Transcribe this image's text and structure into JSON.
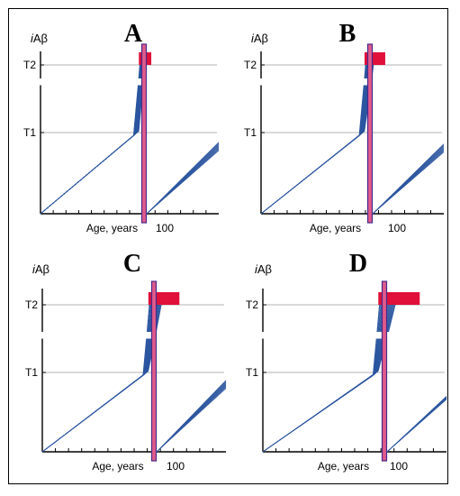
{
  "chart_data": [
    {
      "type": "line",
      "panel_label": "A",
      "ylabel_italic": "i",
      "ylabel_main": "Aβ",
      "xlabel": "Age, years",
      "x_tick_label": "100",
      "y_tick_labels": [
        "T2",
        "T1"
      ],
      "series_color": "#2c56a0",
      "marker_color": "#e0103a",
      "onset_x": 95,
      "treatment_x": 100,
      "ylim": [
        0,
        2.2
      ],
      "xlim": [
        0,
        150
      ],
      "lines_count": 26,
      "break_y": [
        1.7,
        1.8
      ],
      "red_bar_width": 6,
      "second_phase_end_y": [
        0.78,
        0.88
      ]
    },
    {
      "type": "line",
      "panel_label": "B",
      "ylabel_italic": "i",
      "ylabel_main": "Aβ",
      "xlabel": "Age, years",
      "x_tick_label": "100",
      "y_tick_labels": [
        "T2",
        "T1"
      ],
      "series_color": "#2c56a0",
      "marker_color": "#e0103a",
      "onset_x": 95,
      "treatment_x": 100,
      "ylim": [
        0,
        2.2
      ],
      "xlim": [
        0,
        150
      ],
      "lines_count": 26,
      "break_y": [
        1.7,
        1.8
      ],
      "red_bar_width": 10,
      "second_phase_end_y": [
        0.76,
        0.86
      ]
    },
    {
      "type": "line",
      "panel_label": "C",
      "ylabel_italic": "i",
      "ylabel_main": "Aβ",
      "xlabel": "Age, years",
      "x_tick_label": "100",
      "y_tick_labels": [
        "T2",
        "T1"
      ],
      "series_color": "#2c56a0",
      "marker_color": "#e0103a",
      "onset_x": 95,
      "treatment_x": 100,
      "ylim": [
        0,
        2.2
      ],
      "xlim": [
        0,
        150
      ],
      "lines_count": 26,
      "break_y": [
        1.5,
        1.6
      ],
      "red_bar_width": 15,
      "second_phase_end_y": [
        0.8,
        0.9
      ]
    },
    {
      "type": "line",
      "panel_label": "D",
      "ylabel_italic": "i",
      "ylabel_main": "Aβ",
      "xlabel": "Age, years",
      "x_tick_label": "100",
      "y_tick_labels": [
        "T2",
        "T1"
      ],
      "series_color": "#2c56a0",
      "marker_color": "#e0103a",
      "onset_x": 95,
      "treatment_x": 100,
      "ylim": [
        0,
        2.2
      ],
      "xlim": [
        0,
        150
      ],
      "lines_count": 26,
      "break_y": [
        1.5,
        1.6
      ],
      "red_bar_width": 20,
      "second_phase_end_y": [
        0.66,
        0.7
      ]
    }
  ]
}
